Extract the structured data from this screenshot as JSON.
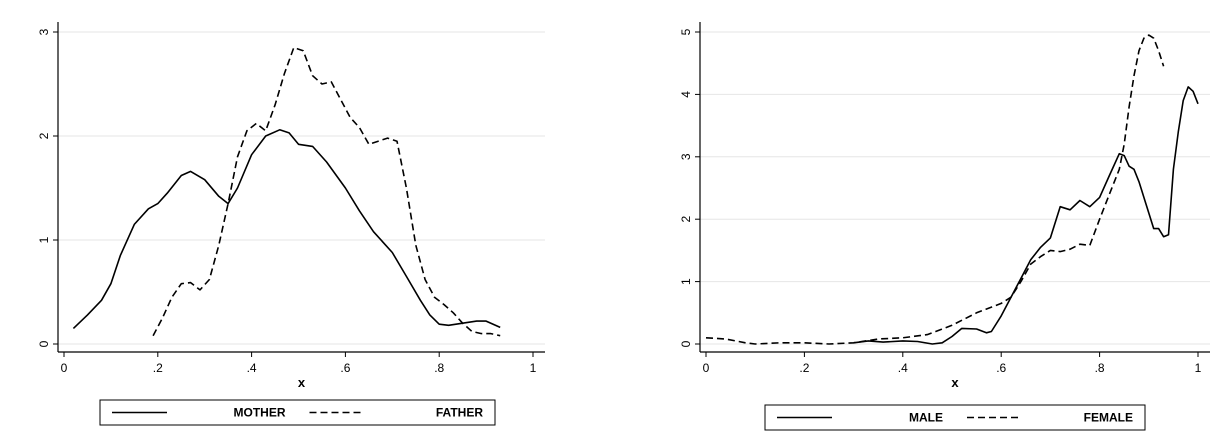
{
  "chart_data": [
    {
      "type": "line",
      "xlabel": "x",
      "ylabel": "",
      "xlim": [
        0,
        1
      ],
      "ylim": [
        0,
        3
      ],
      "xticks": [
        0,
        0.2,
        0.4,
        0.6,
        0.8,
        1
      ],
      "xtick_labels": [
        "0",
        ".2",
        ".4",
        ".6",
        ".8",
        "1"
      ],
      "yticks": [
        0,
        1,
        2,
        3
      ],
      "ytick_labels": [
        "0",
        "1",
        "2",
        "3"
      ],
      "grid": true,
      "legend_position": "bottom",
      "series": [
        {
          "name": "MOTHER",
          "style": "solid",
          "x": [
            0.02,
            0.05,
            0.08,
            0.1,
            0.12,
            0.15,
            0.18,
            0.2,
            0.22,
            0.25,
            0.27,
            0.3,
            0.33,
            0.35,
            0.37,
            0.4,
            0.43,
            0.46,
            0.48,
            0.5,
            0.53,
            0.56,
            0.6,
            0.63,
            0.66,
            0.7,
            0.73,
            0.76,
            0.78,
            0.8,
            0.82,
            0.85,
            0.88,
            0.9,
            0.93
          ],
          "y": [
            0.15,
            0.28,
            0.42,
            0.58,
            0.85,
            1.15,
            1.3,
            1.35,
            1.45,
            1.62,
            1.66,
            1.58,
            1.42,
            1.35,
            1.5,
            1.82,
            2.0,
            2.06,
            2.03,
            1.92,
            1.9,
            1.75,
            1.5,
            1.28,
            1.08,
            0.88,
            0.65,
            0.42,
            0.28,
            0.19,
            0.18,
            0.2,
            0.22,
            0.22,
            0.16
          ]
        },
        {
          "name": "FATHER",
          "style": "dash",
          "x": [
            0.19,
            0.21,
            0.23,
            0.25,
            0.27,
            0.29,
            0.31,
            0.33,
            0.35,
            0.37,
            0.39,
            0.41,
            0.43,
            0.45,
            0.47,
            0.49,
            0.51,
            0.53,
            0.55,
            0.57,
            0.59,
            0.61,
            0.63,
            0.65,
            0.67,
            0.69,
            0.71,
            0.73,
            0.75,
            0.77,
            0.79,
            0.81,
            0.83,
            0.85,
            0.87,
            0.89,
            0.91,
            0.93
          ],
          "y": [
            0.08,
            0.25,
            0.45,
            0.58,
            0.59,
            0.52,
            0.62,
            0.95,
            1.35,
            1.8,
            2.05,
            2.12,
            2.05,
            2.3,
            2.6,
            2.85,
            2.82,
            2.58,
            2.5,
            2.52,
            2.35,
            2.18,
            2.08,
            1.92,
            1.95,
            1.98,
            1.95,
            1.5,
            0.95,
            0.62,
            0.45,
            0.38,
            0.3,
            0.2,
            0.12,
            0.1,
            0.1,
            0.08
          ]
        }
      ]
    },
    {
      "type": "line",
      "xlabel": "x",
      "ylabel": "",
      "xlim": [
        0,
        1
      ],
      "ylim": [
        0,
        5
      ],
      "xticks": [
        0,
        0.2,
        0.4,
        0.6,
        0.8,
        1
      ],
      "xtick_labels": [
        "0",
        ".2",
        ".4",
        ".6",
        ".8",
        "1"
      ],
      "yticks": [
        0,
        1,
        2,
        3,
        4,
        5
      ],
      "ytick_labels": [
        "0",
        "1",
        "2",
        "3",
        "4",
        "5"
      ],
      "grid": true,
      "legend_position": "bottom",
      "series": [
        {
          "name": "MALE",
          "style": "solid",
          "x": [
            0.3,
            0.33,
            0.36,
            0.4,
            0.43,
            0.46,
            0.48,
            0.5,
            0.52,
            0.55,
            0.57,
            0.58,
            0.6,
            0.62,
            0.64,
            0.66,
            0.68,
            0.7,
            0.72,
            0.74,
            0.76,
            0.78,
            0.8,
            0.82,
            0.84,
            0.85,
            0.86,
            0.87,
            0.88,
            0.9,
            0.91,
            0.92,
            0.93,
            0.94,
            0.95,
            0.96,
            0.97,
            0.98,
            0.99,
            1.0
          ],
          "y": [
            0.02,
            0.05,
            0.03,
            0.05,
            0.04,
            0.0,
            0.02,
            0.12,
            0.25,
            0.24,
            0.18,
            0.2,
            0.45,
            0.75,
            1.05,
            1.35,
            1.55,
            1.7,
            2.2,
            2.15,
            2.3,
            2.2,
            2.35,
            2.7,
            3.05,
            3.02,
            2.85,
            2.8,
            2.6,
            2.1,
            1.85,
            1.85,
            1.72,
            1.75,
            2.8,
            3.4,
            3.9,
            4.12,
            4.05,
            3.85
          ]
        },
        {
          "name": "FEMALE",
          "style": "dash",
          "x": [
            0.0,
            0.04,
            0.08,
            0.1,
            0.15,
            0.2,
            0.25,
            0.3,
            0.35,
            0.4,
            0.45,
            0.5,
            0.55,
            0.6,
            0.62,
            0.64,
            0.66,
            0.68,
            0.7,
            0.72,
            0.74,
            0.76,
            0.78,
            0.8,
            0.82,
            0.84,
            0.85,
            0.86,
            0.87,
            0.88,
            0.89,
            0.9,
            0.91,
            0.92,
            0.93
          ],
          "y": [
            0.1,
            0.08,
            0.02,
            0.0,
            0.02,
            0.02,
            0.0,
            0.02,
            0.08,
            0.1,
            0.15,
            0.3,
            0.5,
            0.65,
            0.75,
            1.0,
            1.28,
            1.4,
            1.5,
            1.48,
            1.52,
            1.6,
            1.58,
            2.0,
            2.4,
            2.8,
            3.2,
            3.8,
            4.3,
            4.7,
            4.9,
            4.95,
            4.9,
            4.7,
            4.45
          ]
        }
      ]
    }
  ]
}
